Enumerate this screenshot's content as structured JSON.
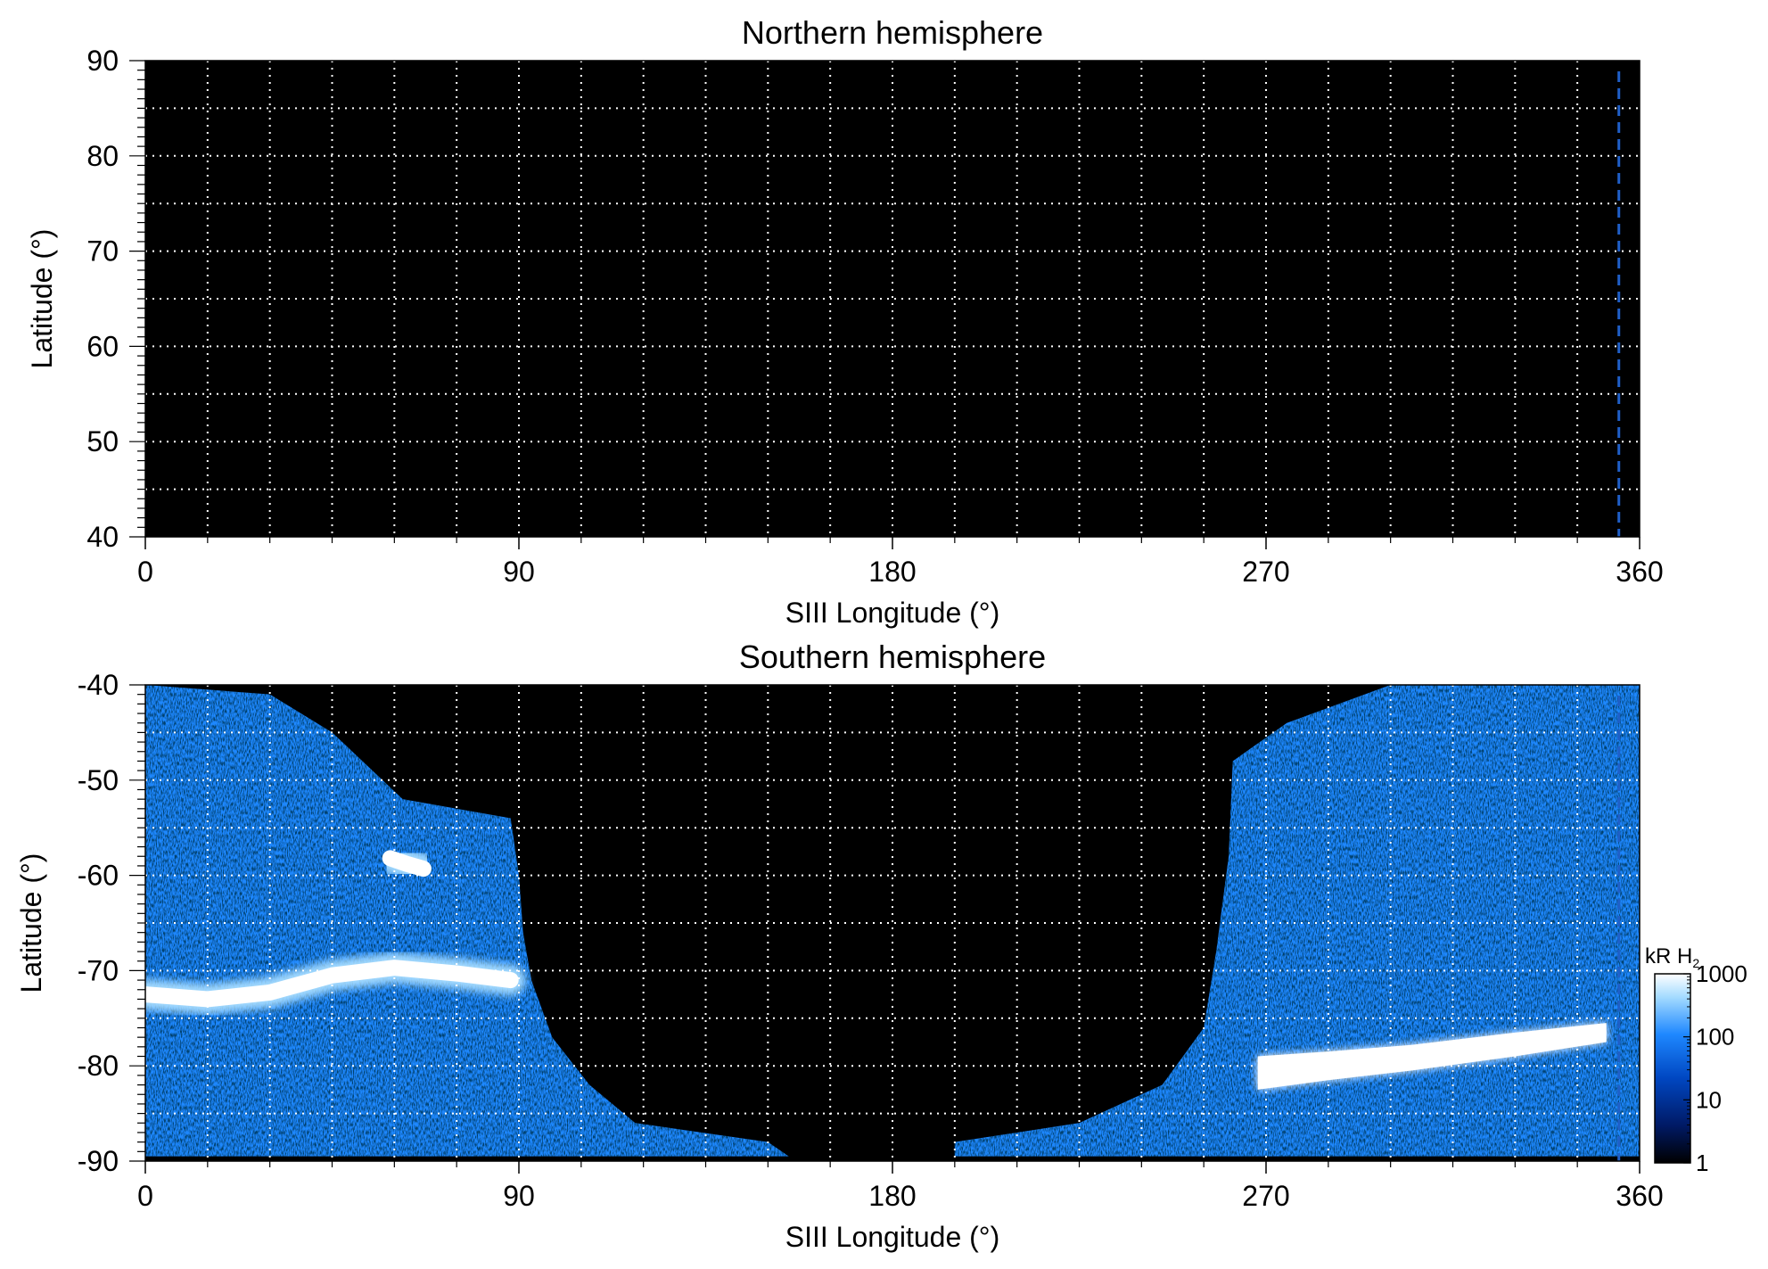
{
  "chart_data": [
    {
      "type": "heatmap",
      "title": "Northern hemisphere",
      "xlabel": "SIII Longitude (°)",
      "ylabel": "Latitude (°)",
      "xlim": [
        0,
        360
      ],
      "ylim": [
        40,
        90
      ],
      "x_ticks": [
        "0",
        "90",
        "180",
        "270",
        "360"
      ],
      "y_ticks": [
        "40",
        "50",
        "60",
        "70",
        "80",
        "90"
      ],
      "grid": true,
      "grid_step_deg": 15,
      "background_color": "#000000",
      "grid_color": "#ffffff",
      "marker_line": {
        "longitude": 355,
        "color": "#1f5fc8",
        "style": "dashed"
      },
      "emission_regions": []
    },
    {
      "type": "heatmap",
      "title": "Southern hemisphere",
      "xlabel": "SIII Longitude (°)",
      "ylabel": "Latitude (°)",
      "xlim": [
        0,
        360
      ],
      "ylim": [
        -90,
        -40
      ],
      "x_ticks": [
        "0",
        "90",
        "180",
        "270",
        "360"
      ],
      "y_ticks": [
        "-40",
        "-50",
        "-60",
        "-70",
        "-80",
        "-90"
      ],
      "grid": true,
      "grid_step_deg": 15,
      "background_color": "#000000",
      "grid_color": "#ffffff",
      "marker_line": {
        "longitude": 355,
        "color": "#1f5fc8",
        "style": "dashed"
      },
      "emission_regions": [
        {
          "name": "west-coverage",
          "boundary": [
            [
              0,
              -40
            ],
            [
              30,
              -41
            ],
            [
              45,
              -45
            ],
            [
              62,
              -52
            ],
            [
              88,
              -54
            ],
            [
              90,
              -60
            ],
            [
              91,
              -66
            ],
            [
              93,
              -71
            ],
            [
              98,
              -77
            ],
            [
              107,
              -82
            ],
            [
              118,
              -86
            ],
            [
              150,
              -88
            ],
            [
              155,
              -89.5
            ],
            [
              0,
              -89.5
            ]
          ],
          "intensity_kR": 40
        },
        {
          "name": "east-coverage",
          "boundary": [
            [
              360,
              -40
            ],
            [
              300,
              -40
            ],
            [
              275,
              -44
            ],
            [
              262,
              -48
            ],
            [
              261,
              -58
            ],
            [
              258,
              -68
            ],
            [
              255,
              -76
            ],
            [
              245,
              -82
            ],
            [
              225,
              -86
            ],
            [
              195,
              -88
            ],
            [
              195,
              -89.5
            ],
            [
              360,
              -89.5
            ]
          ],
          "intensity_kR": 40
        },
        {
          "name": "main-oval-west",
          "path": [
            [
              0,
              -72.5
            ],
            [
              15,
              -73
            ],
            [
              30,
              -72.3
            ],
            [
              45,
              -70.5
            ],
            [
              60,
              -69.7
            ],
            [
              75,
              -70.3
            ],
            [
              88,
              -71
            ]
          ],
          "intensity_kR": 1000
        },
        {
          "name": "bright-spot",
          "path": [
            [
              59,
              -58.2
            ],
            [
              63,
              -58.8
            ],
            [
              67,
              -59.3
            ]
          ],
          "intensity_kR": 1000
        },
        {
          "name": "main-oval-east",
          "boundary": [
            [
              268,
              -79
            ],
            [
              285,
              -78.5
            ],
            [
              305,
              -77.8
            ],
            [
              330,
              -76.5
            ],
            [
              352,
              -75.5
            ],
            [
              352,
              -77.5
            ],
            [
              330,
              -79
            ],
            [
              305,
              -80.5
            ],
            [
              285,
              -81.5
            ],
            [
              268,
              -82.5
            ]
          ],
          "intensity_kR": 1000
        }
      ]
    }
  ],
  "colorbar": {
    "label_main": "kR H",
    "label_sub": "2",
    "scale": "log",
    "ticks": [
      "1",
      "10",
      "100",
      "1000"
    ],
    "colors": [
      "#000000",
      "#001a66",
      "#0047c2",
      "#1e88ff",
      "#a6dcff",
      "#ffffff"
    ]
  }
}
